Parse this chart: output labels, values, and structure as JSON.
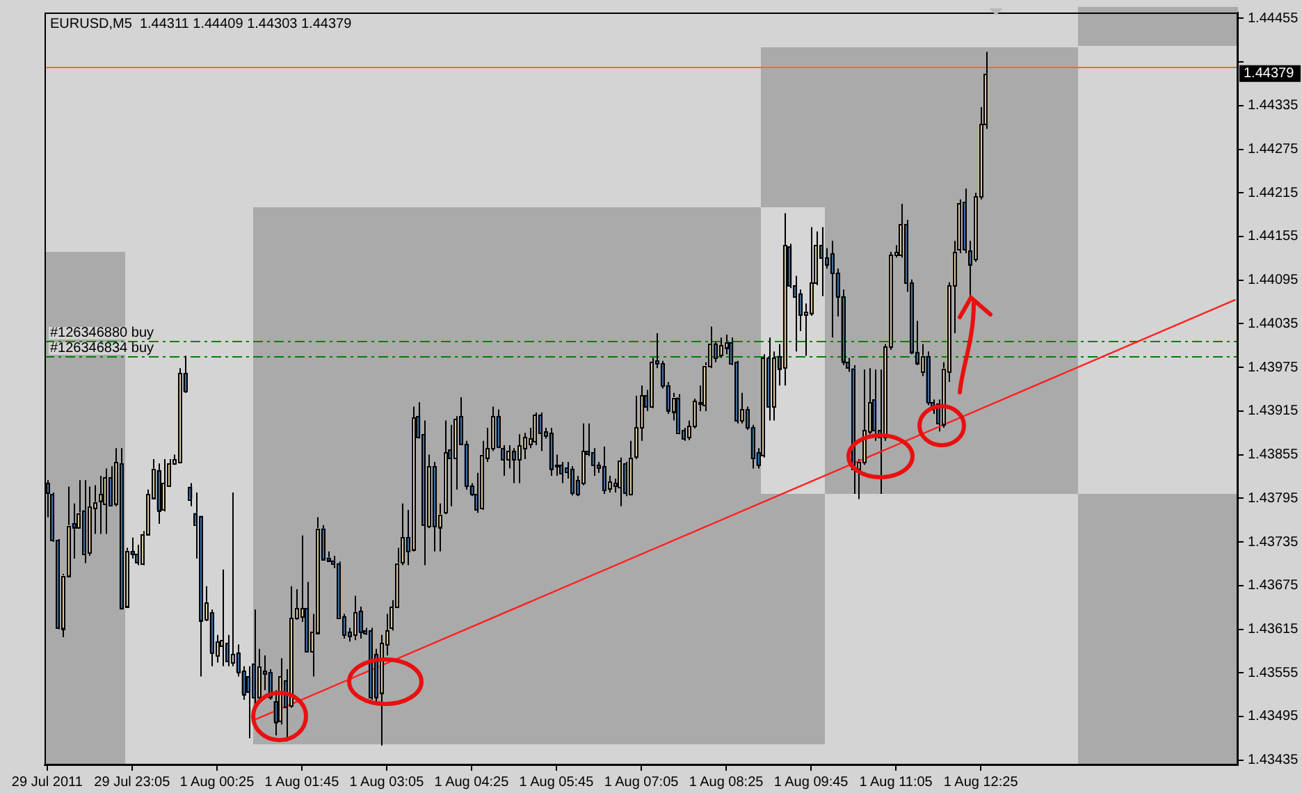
{
  "chart_data": {
    "type": "candlestick",
    "title": "EURUSD,M5  1.44311 1.44409 1.44303 1.44379",
    "categories": [
      "29 Jul 2011",
      null,
      null,
      null,
      null,
      null,
      null,
      null,
      null,
      null,
      null,
      null,
      null,
      null,
      null,
      null,
      "29 Jul 23:05",
      null,
      null,
      null,
      null,
      null,
      null,
      null,
      null,
      null,
      null,
      null,
      null,
      null,
      null,
      null,
      "1 Aug 00:25",
      null,
      null,
      null,
      null,
      null,
      null,
      null,
      null,
      null,
      null,
      null,
      null,
      null,
      null,
      null,
      "1 Aug 01:45",
      null,
      null,
      null,
      null,
      null,
      null,
      null,
      null,
      null,
      null,
      null,
      null,
      null,
      null,
      null,
      "1 Aug 03:05",
      null,
      null,
      null,
      null,
      null,
      null,
      null,
      null,
      null,
      null,
      null,
      null,
      null,
      null,
      null,
      "1 Aug 04:25",
      null,
      null,
      null,
      null,
      null,
      null,
      null,
      null,
      null,
      null,
      null,
      null,
      null,
      null,
      null,
      "1 Aug 05:45",
      null,
      null,
      null,
      null,
      null,
      null,
      null,
      null,
      null,
      null,
      null,
      null,
      null,
      null,
      null,
      "1 Aug 07:05",
      null,
      null,
      null,
      null,
      null,
      null,
      null,
      null,
      null,
      null,
      null,
      null,
      null,
      null,
      null,
      "1 Aug 08:25",
      null,
      null,
      null,
      null,
      null,
      null,
      null,
      null,
      null,
      null,
      null,
      null,
      null,
      null,
      null,
      "1 Aug 09:45",
      null,
      null,
      null,
      null,
      null,
      null,
      null,
      null,
      null,
      null,
      null,
      null,
      null,
      null,
      null,
      "1 Aug 11:05",
      null,
      null,
      null,
      null,
      null,
      null,
      null,
      null,
      null,
      null,
      null,
      null,
      null,
      null,
      null,
      "1 Aug 12:25",
      null,
      null,
      null,
      null,
      null,
      null,
      null,
      null,
      null,
      null,
      null,
      null,
      null,
      null,
      null,
      null,
      null,
      null,
      null,
      null,
      null,
      null,
      null,
      null,
      null,
      null,
      null,
      null,
      null,
      null,
      null,
      null,
      null,
      null,
      null,
      null,
      null,
      null,
      null,
      null,
      null,
      null,
      null,
      null,
      null,
      null,
      null,
      null
    ],
    "ohlc": [
      [
        1.43816,
        1.4382,
        1.43769,
        1.43803
      ],
      [
        1.43801,
        1.43803,
        1.43735,
        1.43737
      ],
      [
        1.43737,
        1.43739,
        1.43615,
        1.43617
      ],
      [
        1.43617,
        1.43691,
        1.43604,
        1.43689
      ],
      [
        1.43689,
        1.43811,
        1.43687,
        1.43758
      ],
      [
        1.43761,
        1.43788,
        1.43712,
        1.43756
      ],
      [
        1.43756,
        1.4382,
        1.43754,
        1.43775
      ],
      [
        1.43779,
        1.4382,
        1.43706,
        1.4372
      ],
      [
        1.4372,
        1.43811,
        1.43716,
        1.43784
      ],
      [
        1.43782,
        1.43813,
        1.43746,
        1.4379
      ],
      [
        1.43792,
        1.43826,
        1.43746,
        1.43801
      ],
      [
        1.43788,
        1.43836,
        1.43746,
        1.43824
      ],
      [
        1.43824,
        1.43839,
        1.43784,
        1.43786
      ],
      [
        1.43788,
        1.43864,
        1.43784,
        1.43845
      ],
      [
        1.43843,
        1.43864,
        1.43642,
        1.43644
      ],
      [
        1.43647,
        1.43727,
        1.43645,
        1.43723
      ],
      [
        1.43722,
        1.43741,
        1.43712,
        1.43718
      ],
      [
        1.43718,
        1.43731,
        1.43703,
        1.43706
      ],
      [
        1.43706,
        1.4375,
        1.43703,
        1.43746
      ],
      [
        1.43746,
        1.43807,
        1.43744,
        1.43801
      ],
      [
        1.43796,
        1.43849,
        1.43794,
        1.43836
      ],
      [
        1.43834,
        1.43843,
        1.4376,
        1.43779
      ],
      [
        1.43779,
        1.43849,
        1.43777,
        1.43816
      ],
      [
        1.43813,
        1.43849,
        1.43811,
        1.43843
      ],
      [
        1.43843,
        1.43855,
        1.43841,
        1.43849
      ],
      [
        1.43845,
        1.43974,
        1.43843,
        1.43967
      ],
      [
        1.43967,
        1.43991,
        1.4394,
        1.43942
      ],
      [
        1.43811,
        1.43816,
        1.43784,
        1.43794
      ],
      [
        1.43775,
        1.43803,
        1.43712,
        1.4376
      ],
      [
        1.43771,
        1.43771,
        1.4355,
        1.43628
      ],
      [
        1.43628,
        1.43674,
        1.43626,
        1.43651
      ],
      [
        1.43638,
        1.43642,
        1.43564,
        1.43583
      ],
      [
        1.43579,
        1.43607,
        1.43569,
        1.43598
      ],
      [
        1.43592,
        1.43697,
        1.43564,
        1.436
      ],
      [
        1.43596,
        1.43607,
        1.43564,
        1.43571
      ],
      [
        1.43569,
        1.43803,
        1.43564,
        1.43581
      ],
      [
        1.43583,
        1.43594,
        1.4355,
        1.43556
      ],
      [
        1.43558,
        1.43564,
        1.43518,
        1.43526
      ],
      [
        1.4355,
        1.43564,
        1.43465,
        1.43528
      ],
      [
        1.43568,
        1.43642,
        1.43512,
        1.43522
      ],
      [
        1.43522,
        1.43588,
        1.43518,
        1.43564
      ],
      [
        1.43558,
        1.43579,
        1.43531,
        1.43554
      ],
      [
        1.43556,
        1.4356,
        1.43518,
        1.43522
      ],
      [
        1.43516,
        1.43531,
        1.43469,
        1.43488
      ],
      [
        1.43488,
        1.43575,
        1.43484,
        1.4355
      ],
      [
        1.43545,
        1.4356,
        1.43461,
        1.43509
      ],
      [
        1.43509,
        1.43674,
        1.43507,
        1.4363
      ],
      [
        1.4363,
        1.4367,
        1.43628,
        1.43644
      ],
      [
        1.43632,
        1.43744,
        1.43625,
        1.43644
      ],
      [
        1.43644,
        1.4368,
        1.43583,
        1.43585
      ],
      [
        1.43585,
        1.43636,
        1.4355,
        1.43611
      ],
      [
        1.43611,
        1.43769,
        1.43609,
        1.43754
      ],
      [
        1.43754,
        1.43758,
        1.4371,
        1.43712
      ],
      [
        1.43714,
        1.43722,
        1.43708,
        1.4371
      ],
      [
        1.4371,
        1.43716,
        1.43699,
        1.43706
      ],
      [
        1.43706,
        1.43708,
        1.4363,
        1.43632
      ],
      [
        1.43632,
        1.43636,
        1.43602,
        1.43607
      ],
      [
        1.43611,
        1.43617,
        1.43598,
        1.43606
      ],
      [
        1.43607,
        1.43661,
        1.436,
        1.43638
      ],
      [
        1.4364,
        1.43646,
        1.43602,
        1.43611
      ],
      [
        1.43613,
        1.43617,
        1.43607,
        1.43609
      ],
      [
        1.43613,
        1.43617,
        1.43518,
        1.43522
      ],
      [
        1.43581,
        1.43588,
        1.43512,
        1.43522
      ],
      [
        1.43528,
        1.43607,
        1.43455,
        1.43596
      ],
      [
        1.43594,
        1.43636,
        1.43579,
        1.43613
      ],
      [
        1.43617,
        1.43655,
        1.43613,
        1.43646
      ],
      [
        1.43646,
        1.43727,
        1.43644,
        1.43706
      ],
      [
        1.43706,
        1.43788,
        1.43703,
        1.43741
      ],
      [
        1.43741,
        1.43779,
        1.43703,
        1.43722
      ],
      [
        1.43725,
        1.43921,
        1.43722,
        1.43906
      ],
      [
        1.43908,
        1.43927,
        1.43877,
        1.43879
      ],
      [
        1.43883,
        1.43902,
        1.43703,
        1.43758
      ],
      [
        1.43756,
        1.43855,
        1.43754,
        1.43839
      ],
      [
        1.43839,
        1.43845,
        1.43722,
        1.43756
      ],
      [
        1.43756,
        1.43788,
        1.43722,
        1.43773
      ],
      [
        1.43775,
        1.43902,
        1.43773,
        1.43858
      ],
      [
        1.43862,
        1.43896,
        1.43784,
        1.43851
      ],
      [
        1.43851,
        1.43908,
        1.43807,
        1.43904
      ],
      [
        1.43908,
        1.43934,
        1.43868,
        1.4387
      ],
      [
        1.4387,
        1.43874,
        1.43807,
        1.43813
      ],
      [
        1.43813,
        1.43816,
        1.43798,
        1.43801
      ],
      [
        1.43801,
        1.4383,
        1.43775,
        1.43779
      ],
      [
        1.43782,
        1.43874,
        1.43779,
        1.43855
      ],
      [
        1.43851,
        1.43892,
        1.43845,
        1.43864
      ],
      [
        1.43864,
        1.43921,
        1.4386,
        1.43908
      ],
      [
        1.43908,
        1.43917,
        1.43864,
        1.43866
      ],
      [
        1.43864,
        1.43868,
        1.43826,
        1.43849
      ],
      [
        1.43849,
        1.43868,
        1.43836,
        1.4386
      ],
      [
        1.4386,
        1.43864,
        1.43816,
        1.43849
      ],
      [
        1.43849,
        1.43883,
        1.43816,
        1.43868
      ],
      [
        1.43864,
        1.43885,
        1.43849,
        1.43879
      ],
      [
        1.4387,
        1.43892,
        1.43864,
        1.43877
      ],
      [
        1.43874,
        1.43913,
        1.43868,
        1.4391
      ],
      [
        1.4391,
        1.43913,
        1.4386,
        1.43885
      ],
      [
        1.43887,
        1.43892,
        1.43877,
        1.43881
      ],
      [
        1.43885,
        1.43892,
        1.43826,
        1.43836
      ],
      [
        1.43841,
        1.43855,
        1.43826,
        1.43839
      ],
      [
        1.43841,
        1.43845,
        1.43816,
        1.4383
      ],
      [
        1.43837,
        1.43845,
        1.43822,
        1.43832
      ],
      [
        1.43836,
        1.43839,
        1.43799,
        1.43803
      ],
      [
        1.4382,
        1.43826,
        1.43798,
        1.43801
      ],
      [
        1.43816,
        1.43898,
        1.43813,
        1.4386
      ],
      [
        1.4386,
        1.43898,
        1.43853,
        1.43856
      ],
      [
        1.43858,
        1.43864,
        1.43826,
        1.43841
      ],
      [
        1.43841,
        1.43845,
        1.4383,
        1.43837
      ],
      [
        1.43839,
        1.43866,
        1.43801,
        1.43807
      ],
      [
        1.43809,
        1.43826,
        1.43803,
        1.43818
      ],
      [
        1.43813,
        1.43822,
        1.43803,
        1.43816
      ],
      [
        1.43811,
        1.43851,
        1.43784,
        1.43847
      ],
      [
        1.43843,
        1.43845,
        1.43798,
        1.43803
      ],
      [
        1.43801,
        1.43874,
        1.43799,
        1.43851
      ],
      [
        1.43851,
        1.43936,
        1.43849,
        1.43892
      ],
      [
        1.43892,
        1.4395,
        1.43874,
        1.43936
      ],
      [
        1.43936,
        1.43944,
        1.43915,
        1.43921
      ],
      [
        1.43921,
        1.43988,
        1.43919,
        1.43982
      ],
      [
        1.43984,
        1.44022,
        1.43974,
        1.4398
      ],
      [
        1.4398,
        1.43984,
        1.43946,
        1.4395
      ],
      [
        1.43951,
        1.43955,
        1.43911,
        1.43917
      ],
      [
        1.43915,
        1.4394,
        1.43902,
        1.43934
      ],
      [
        1.43934,
        1.43938,
        1.43883,
        1.43887
      ],
      [
        1.43889,
        1.43892,
        1.43874,
        1.43877
      ],
      [
        1.43879,
        1.43902,
        1.43875,
        1.43894
      ],
      [
        1.43894,
        1.43932,
        1.43891,
        1.43929
      ],
      [
        1.43925,
        1.4395,
        1.43915,
        1.43927
      ],
      [
        1.43925,
        1.43982,
        1.43915,
        1.43978
      ],
      [
        1.43978,
        1.44031,
        1.43974,
        1.44008
      ],
      [
        1.44008,
        1.4401,
        1.43982,
        1.43988
      ],
      [
        1.43991,
        1.44016,
        1.43988,
        1.44005
      ],
      [
        1.44003,
        1.4402,
        1.43993,
        1.4401
      ],
      [
        1.4401,
        1.44016,
        1.43978,
        1.43982
      ],
      [
        1.43982,
        1.43984,
        1.43898,
        1.43902
      ],
      [
        1.43902,
        1.4394,
        1.43898,
        1.43917
      ],
      [
        1.43917,
        1.43921,
        1.43889,
        1.43892
      ],
      [
        1.43892,
        1.43896,
        1.43836,
        1.43849
      ],
      [
        1.43858,
        1.43864,
        1.43836,
        1.43841
      ],
      [
        1.43855,
        1.43993,
        1.43851,
        1.43988
      ],
      [
        1.43988,
        1.44016,
        1.43902,
        1.43921
      ],
      [
        1.43921,
        1.43997,
        1.43902,
        1.43988
      ],
      [
        1.43991,
        1.44007,
        1.4395,
        1.43974
      ],
      [
        1.43974,
        1.44187,
        1.4395,
        1.44143
      ],
      [
        1.44141,
        1.44145,
        1.44084,
        1.44088
      ],
      [
        1.44088,
        1.44101,
        1.43997,
        1.44073
      ],
      [
        1.44077,
        1.44082,
        1.44025,
        1.44048
      ],
      [
        1.44048,
        1.44063,
        1.43991,
        1.44052
      ],
      [
        1.4405,
        1.44168,
        1.44046,
        1.44092
      ],
      [
        1.44092,
        1.44162,
        1.44088,
        1.44143
      ],
      [
        1.44143,
        1.44168,
        1.44073,
        1.44126
      ],
      [
        1.44126,
        1.44139,
        1.44111,
        1.44117
      ],
      [
        1.44132,
        1.44149,
        1.44016,
        1.44105
      ],
      [
        1.44105,
        1.44111,
        1.44045,
        1.44073
      ],
      [
        1.44073,
        1.44082,
        1.43978,
        1.43984
      ],
      [
        1.43982,
        1.43988,
        1.43969,
        1.43974
      ],
      [
        1.43974,
        1.43978,
        1.43801,
        1.43836
      ],
      [
        1.43836,
        1.43849,
        1.43794,
        1.43845
      ],
      [
        1.43845,
        1.43972,
        1.43841,
        1.43889
      ],
      [
        1.43887,
        1.43974,
        1.43883,
        1.43927
      ],
      [
        1.43931,
        1.43972,
        1.43874,
        1.43889
      ],
      [
        1.43889,
        1.43972,
        1.43801,
        1.43879
      ],
      [
        1.43879,
        1.44007,
        1.43874,
        1.44003
      ],
      [
        1.44003,
        1.44134,
        1.43999,
        1.4413
      ],
      [
        1.4413,
        1.44143,
        1.44126,
        1.44134
      ],
      [
        1.4413,
        1.442,
        1.44126,
        1.44172
      ],
      [
        1.44172,
        1.44178,
        1.44079,
        1.44092
      ],
      [
        1.44092,
        1.44096,
        1.43993,
        1.43997
      ],
      [
        1.43997,
        1.44039,
        1.43978,
        1.43982
      ],
      [
        1.43969,
        1.44007,
        1.43963,
        1.43991
      ],
      [
        1.43991,
        1.43997,
        1.43923,
        1.43927
      ],
      [
        1.43927,
        1.43931,
        1.43911,
        1.43917
      ],
      [
        1.43925,
        1.43931,
        1.43887,
        1.43898
      ],
      [
        1.43898,
        1.43982,
        1.43892,
        1.43974
      ],
      [
        1.43969,
        1.44092,
        1.43955,
        1.44088
      ],
      [
        1.44088,
        1.44149,
        1.44022,
        1.44134
      ],
      [
        1.44136,
        1.44206,
        1.44132,
        1.442
      ],
      [
        1.44202,
        1.44221,
        1.44132,
        1.44136
      ],
      [
        1.44136,
        1.44149,
        1.44073,
        1.44117
      ],
      [
        1.44124,
        1.44215,
        1.4412,
        1.4421
      ],
      [
        1.4421,
        1.44333,
        1.44206,
        1.4431
      ],
      [
        1.44311,
        1.44409,
        1.44303,
        1.44379
      ],
      null,
      null,
      null,
      null,
      null,
      null,
      null,
      null,
      null,
      null,
      null,
      null,
      null,
      null,
      null,
      null,
      null,
      null,
      null,
      null,
      null,
      null,
      null,
      null,
      null,
      null,
      null,
      null,
      null,
      null,
      null,
      null,
      null,
      null,
      null,
      null,
      null,
      null,
      null,
      null,
      null,
      null,
      null,
      null,
      null,
      null,
      null
    ],
    "colors": [
      "#3f6f9f",
      "#3f6f9f",
      "#3f6f9f",
      "#d8c89c",
      "#d8c89c",
      "#3f6f9f",
      "#d8c89c",
      "#3f6f9f",
      "#d8c89c",
      "#d8c89c",
      "#d8c89c",
      "#d8c89c",
      "#3f6f9f",
      "#d8c89c",
      "#3f6f9f",
      "#d8c89c",
      "#3f6f9f",
      "#3f6f9f",
      "#d8c89c",
      "#d8c89c",
      "#d8c89c",
      "#3f6f9f",
      "#d8c89c",
      "#d8c89c",
      "#d8c89c",
      "#d8c89c",
      "#3f6f9f",
      "#3f6f9f",
      "#3f6f9f",
      "#3f6f9f",
      "#d8c89c",
      "#3f6f9f",
      "#d8c89c",
      "#d8c89c",
      "#3f6f9f",
      "#d8c89c",
      "#3f6f9f",
      "#3f6f9f",
      "#3f6f9f",
      "#3f6f9f",
      "#d8c89c",
      "#3f6f9f",
      "#3f6f9f",
      "#3f6f9f",
      "#d8c89c",
      "#3f6f9f",
      "#d8c89c",
      "#d8c89c",
      "#d8c89c",
      "#3f6f9f",
      "#d8c89c",
      "#d8c89c",
      "#3f6f9f",
      "#3f6f9f",
      "#3f6f9f",
      "#3f6f9f",
      "#3f6f9f",
      "#3f6f9f",
      "#d8c89c",
      "#3f6f9f",
      "#3f6f9f",
      "#3f6f9f",
      "#3f6f9f",
      "#d8c89c",
      "#d8c89c",
      "#d8c89c",
      "#d8c89c",
      "#d8c89c",
      "#3f6f9f",
      "#d8c89c",
      "#3f6f9f",
      "#3f6f9f",
      "#d8c89c",
      "#3f6f9f",
      "#d8c89c",
      "#d8c89c",
      "#3f6f9f",
      "#d8c89c",
      "#3f6f9f",
      "#3f6f9f",
      "#3f6f9f",
      "#3f6f9f",
      "#d8c89c",
      "#d8c89c",
      "#d8c89c",
      "#3f6f9f",
      "#3f6f9f",
      "#d8c89c",
      "#3f6f9f",
      "#d8c89c",
      "#d8c89c",
      "#d8c89c",
      "#d8c89c",
      "#3f6f9f",
      "#3f6f9f",
      "#3f6f9f",
      "#3f6f9f",
      "#3f6f9f",
      "#3f6f9f",
      "#3f6f9f",
      "#3f6f9f",
      "#d8c89c",
      "#3f6f9f",
      "#3f6f9f",
      "#3f6f9f",
      "#3f6f9f",
      "#d8c89c",
      "#d8c89c",
      "#d8c89c",
      "#3f6f9f",
      "#d8c89c",
      "#d8c89c",
      "#d8c89c",
      "#3f6f9f",
      "#d8c89c",
      "#3f6f9f",
      "#3f6f9f",
      "#3f6f9f",
      "#d8c89c",
      "#3f6f9f",
      "#3f6f9f",
      "#d8c89c",
      "#d8c89c",
      "#d8c89c",
      "#d8c89c",
      "#d8c89c",
      "#3f6f9f",
      "#d8c89c",
      "#d8c89c",
      "#3f6f9f",
      "#3f6f9f",
      "#d8c89c",
      "#3f6f9f",
      "#3f6f9f",
      "#3f6f9f",
      "#d8c89c",
      "#3f6f9f",
      "#d8c89c",
      "#3f6f9f",
      "#d8c89c",
      "#3f6f9f",
      "#3f6f9f",
      "#3f6f9f",
      "#d8c89c",
      "#d8c89c",
      "#d8c89c",
      "#3f6f9f",
      "#3f6f9f",
      "#3f6f9f",
      "#3f6f9f",
      "#3f6f9f",
      "#3f6f9f",
      "#3f6f9f",
      "#d8c89c",
      "#d8c89c",
      "#d8c89c",
      "#3f6f9f",
      "#3f6f9f",
      "#d8c89c",
      "#d8c89c",
      "#d8c89c",
      "#d8c89c",
      "#3f6f9f",
      "#3f6f9f",
      "#3f6f9f",
      "#d8c89c",
      "#3f6f9f",
      "#3f6f9f",
      "#3f6f9f",
      "#d8c89c",
      "#d8c89c",
      "#d8c89c",
      "#d8c89c",
      "#3f6f9f",
      "#3f6f9f",
      "#d8c89c",
      "#d8c89c",
      "#d8c89c",
      null,
      null,
      null,
      null,
      null,
      null,
      null,
      null,
      null,
      null,
      null,
      null,
      null,
      null,
      null,
      null,
      null,
      null,
      null,
      null,
      null,
      null,
      null,
      null,
      null,
      null,
      null,
      null,
      null,
      null,
      null,
      null,
      null,
      null,
      null,
      null,
      null,
      null,
      null,
      null,
      null,
      null,
      null,
      null,
      null,
      null,
      null
    ],
    "ylim": [
      1.43428,
      1.44463
    ],
    "yticks": [
      1.43435,
      1.43495,
      1.43555,
      1.43615,
      1.43675,
      1.43735,
      1.43795,
      1.43855,
      1.43915,
      1.43975,
      1.44035,
      1.44095,
      1.44155,
      1.44215,
      1.44275,
      1.44335,
      {
        "value": 1.44395,
        "label": null
      },
      1.44455
    ],
    "grid": false,
    "legend": false,
    "series": [
      {
        "type": "line",
        "color": "#ff2020",
        "values": [
          null,
          null,
          null,
          null,
          null,
          null,
          null,
          null,
          null,
          null,
          null,
          null,
          null,
          null,
          null,
          null,
          null,
          null,
          null,
          null,
          null,
          null,
          null,
          null,
          null,
          null,
          null,
          null,
          null,
          null,
          null,
          null,
          null,
          null,
          null,
          null,
          null,
          null,
          null,
          1.4349,
          null,
          null,
          null,
          null,
          null,
          null,
          null,
          null,
          null,
          null,
          null,
          null,
          null,
          null,
          null,
          null,
          null,
          null,
          null,
          null,
          null,
          null,
          null,
          null,
          null,
          null,
          null,
          null,
          null,
          null,
          null,
          null,
          null,
          null,
          null,
          null,
          null,
          null,
          null,
          null,
          null,
          null,
          null,
          null,
          null,
          null,
          null,
          null,
          null,
          null,
          null,
          null,
          null,
          null,
          null,
          null,
          null,
          null,
          null,
          null,
          null,
          null,
          null,
          null,
          null,
          null,
          null,
          null,
          null,
          null,
          null,
          null,
          null,
          null,
          null,
          null,
          null,
          null,
          null,
          null,
          null,
          null,
          null,
          null,
          null,
          null,
          null,
          null,
          null,
          null,
          null,
          null,
          null,
          null,
          null,
          null,
          null,
          null,
          null,
          null,
          null,
          null,
          null,
          null,
          null,
          null,
          null,
          null,
          null,
          null,
          null,
          null,
          null,
          null,
          null,
          null,
          null,
          null,
          null,
          null,
          null,
          null,
          null,
          null,
          null,
          null,
          null,
          null,
          null,
          null,
          null,
          null,
          null,
          null,
          null,
          null,
          null,
          null,
          null,
          null,
          null,
          null,
          null,
          null,
          null,
          null,
          null,
          null,
          null,
          null,
          null,
          null,
          null,
          null,
          null,
          null,
          null,
          null,
          null,
          null,
          null,
          null,
          null,
          null,
          null,
          null,
          null,
          null,
          null,
          null,
          null,
          null,
          null,
          null,
          null,
          null,
          null,
          null,
          null,
          null,
          null,
          null,
          null,
          null,
          1.44068
        ]
      }
    ],
    "ref_lines": [
      {
        "axis": "y",
        "value": 1.44388,
        "color": "#ff6a1a",
        "line_style": "solid"
      },
      {
        "axis": "y",
        "value": 1.44011,
        "label": "#126346880 buy",
        "color": "#008000",
        "line_style": "dashed"
      },
      {
        "axis": "y",
        "value": 1.4399,
        "label": "#126346834 buy",
        "color": "#008000",
        "line_style": "dashed"
      }
    ],
    "annotations": [
      "1.44379"
    ]
  }
}
